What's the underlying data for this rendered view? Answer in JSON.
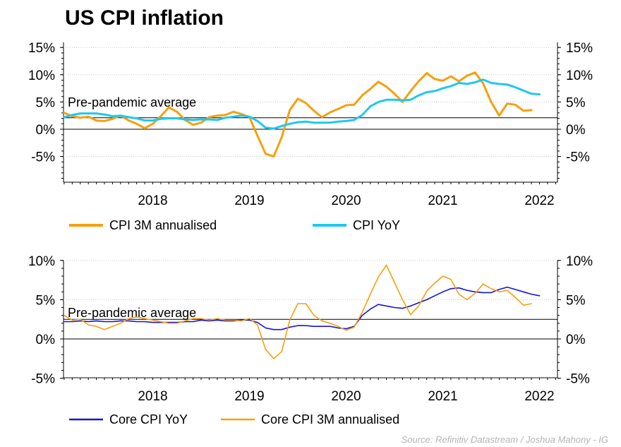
{
  "title": "US CPI inflation",
  "source": "Source: Refinitiv Datastream / Joshua Mahony - IG",
  "x_ticks": [
    "2018",
    "2019",
    "2020",
    "2021",
    "2022"
  ],
  "colors": {
    "cpi_3m": "#f5a00f",
    "cpi_yoy": "#1ec8f0",
    "core_yoy": "#1414d2",
    "core_3m": "#f5a00f",
    "zero_line": "#000000",
    "grid": "#c8c8c8",
    "title": "#000000",
    "source": "#b4b4b4"
  },
  "chart_data": [
    {
      "type": "line",
      "x_start": "2017-08",
      "x_end": "2022-12",
      "ylim": [
        -10,
        15
      ],
      "y_ticks": [
        "15%",
        "10%",
        "5%",
        "0%",
        "-5%"
      ],
      "grid": true,
      "legend_position": "bottom",
      "annotations": [
        {
          "text": "Pre-pandemic average",
          "value": 2.1
        }
      ],
      "series": [
        {
          "name": "CPI 3M annualised",
          "values": [
            3.0,
            2.4,
            2.1,
            2.3,
            1.6,
            1.5,
            1.9,
            2.5,
            1.6,
            1.0,
            0.2,
            1.0,
            2.4,
            4.0,
            3.2,
            1.7,
            0.8,
            1.2,
            2.2,
            2.5,
            2.6,
            3.2,
            2.8,
            2.2,
            -1.2,
            -4.5,
            -5.0,
            -1.5,
            3.5,
            5.6,
            4.8,
            3.4,
            2.2,
            3.1,
            3.7,
            4.4,
            4.5,
            6.2,
            7.4,
            8.7,
            7.8,
            6.5,
            5.0,
            7.0,
            8.8,
            10.3,
            9.2,
            8.9,
            9.7,
            8.8,
            9.8,
            10.4,
            8.4,
            5.0,
            2.5,
            4.7,
            4.5,
            3.4,
            3.5
          ]
        },
        {
          "name": "CPI YoY",
          "values": [
            2.2,
            2.6,
            2.9,
            2.9,
            2.9,
            2.7,
            2.4,
            2.5,
            2.2,
            2.0,
            1.6,
            1.6,
            1.9,
            2.0,
            2.0,
            1.8,
            1.7,
            1.8,
            1.8,
            1.7,
            2.1,
            2.3,
            2.5,
            2.3,
            1.5,
            0.3,
            0.1,
            0.6,
            1.0,
            1.3,
            1.4,
            1.2,
            1.2,
            1.2,
            1.4,
            1.5,
            1.7,
            2.6,
            4.2,
            5.0,
            5.4,
            5.4,
            5.3,
            5.4,
            6.2,
            6.8,
            7.0,
            7.5,
            7.9,
            8.5,
            8.3,
            8.6,
            9.1,
            8.5,
            8.3,
            8.2,
            7.7,
            7.1,
            6.5,
            6.4
          ]
        }
      ]
    },
    {
      "type": "line",
      "x_start": "2017-08",
      "x_end": "2022-12",
      "ylim": [
        -5,
        10
      ],
      "y_ticks": [
        "10%",
        "5%",
        "0%",
        "-5%"
      ],
      "grid": true,
      "legend_position": "bottom",
      "annotations": [
        {
          "text": "Pre-pandemic average",
          "value": 2.5
        }
      ],
      "series": [
        {
          "name": "Core CPI YoY",
          "values": [
            2.2,
            2.2,
            2.3,
            2.2,
            2.3,
            2.2,
            2.2,
            2.3,
            2.3,
            2.2,
            2.2,
            2.1,
            2.1,
            2.1,
            2.1,
            2.2,
            2.2,
            2.4,
            2.3,
            2.4,
            2.3,
            2.3,
            2.4,
            2.4,
            2.1,
            1.4,
            1.2,
            1.2,
            1.5,
            1.7,
            1.7,
            1.6,
            1.6,
            1.6,
            1.4,
            1.3,
            1.6,
            3.0,
            3.8,
            4.4,
            4.2,
            4.0,
            3.9,
            4.2,
            4.6,
            5.0,
            5.5,
            6.0,
            6.4,
            6.5,
            6.2,
            6.0,
            5.9,
            5.9,
            6.3,
            6.6,
            6.3,
            6.0,
            5.7,
            5.5
          ]
        },
        {
          "name": "Core CPI 3M annualised",
          "values": [
            3.0,
            2.4,
            2.5,
            1.8,
            1.6,
            1.2,
            1.6,
            2.0,
            2.6,
            2.8,
            2.6,
            2.4,
            2.2,
            2.0,
            2.0,
            2.3,
            2.6,
            2.6,
            2.4,
            2.6,
            2.4,
            2.4,
            2.3,
            2.6,
            1.8,
            -1.3,
            -2.5,
            -1.6,
            2.4,
            4.5,
            4.5,
            3.0,
            2.3,
            2.0,
            1.6,
            1.1,
            1.5,
            3.4,
            5.7,
            7.9,
            9.4,
            7.2,
            5.0,
            3.1,
            4.2,
            6.1,
            7.1,
            8.0,
            7.6,
            5.7,
            5.0,
            5.8,
            7.0,
            6.4,
            6.0,
            6.2,
            5.3,
            4.3,
            4.5
          ]
        }
      ]
    }
  ]
}
